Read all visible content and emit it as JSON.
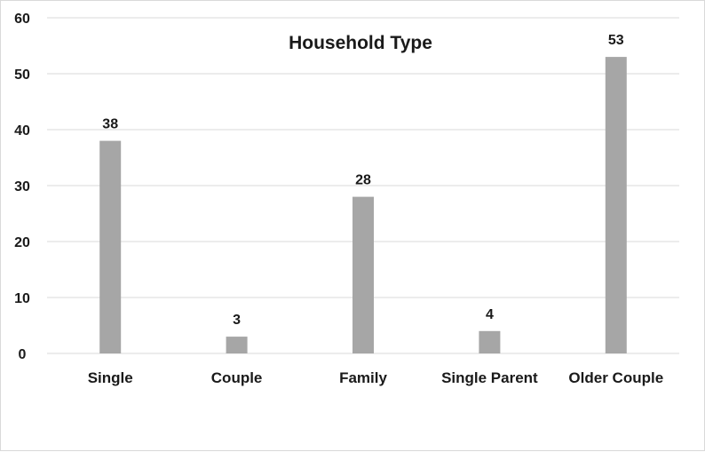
{
  "chart_data": {
    "type": "bar",
    "title": "Household Type",
    "categories": [
      "Single",
      "Couple",
      "Family",
      "Single Parent",
      "Older Couple"
    ],
    "values": [
      38,
      3,
      28,
      4,
      53
    ],
    "xlabel": "",
    "ylabel": "",
    "ylim": [
      0,
      60
    ],
    "yticks": [
      0,
      10,
      20,
      30,
      40,
      50,
      60
    ],
    "grid": true,
    "legend": "none",
    "data_labels": true,
    "colors": {
      "bar": "#a6a6a6",
      "grid": "#d9d9d9",
      "text": "#1a1a1a"
    }
  }
}
